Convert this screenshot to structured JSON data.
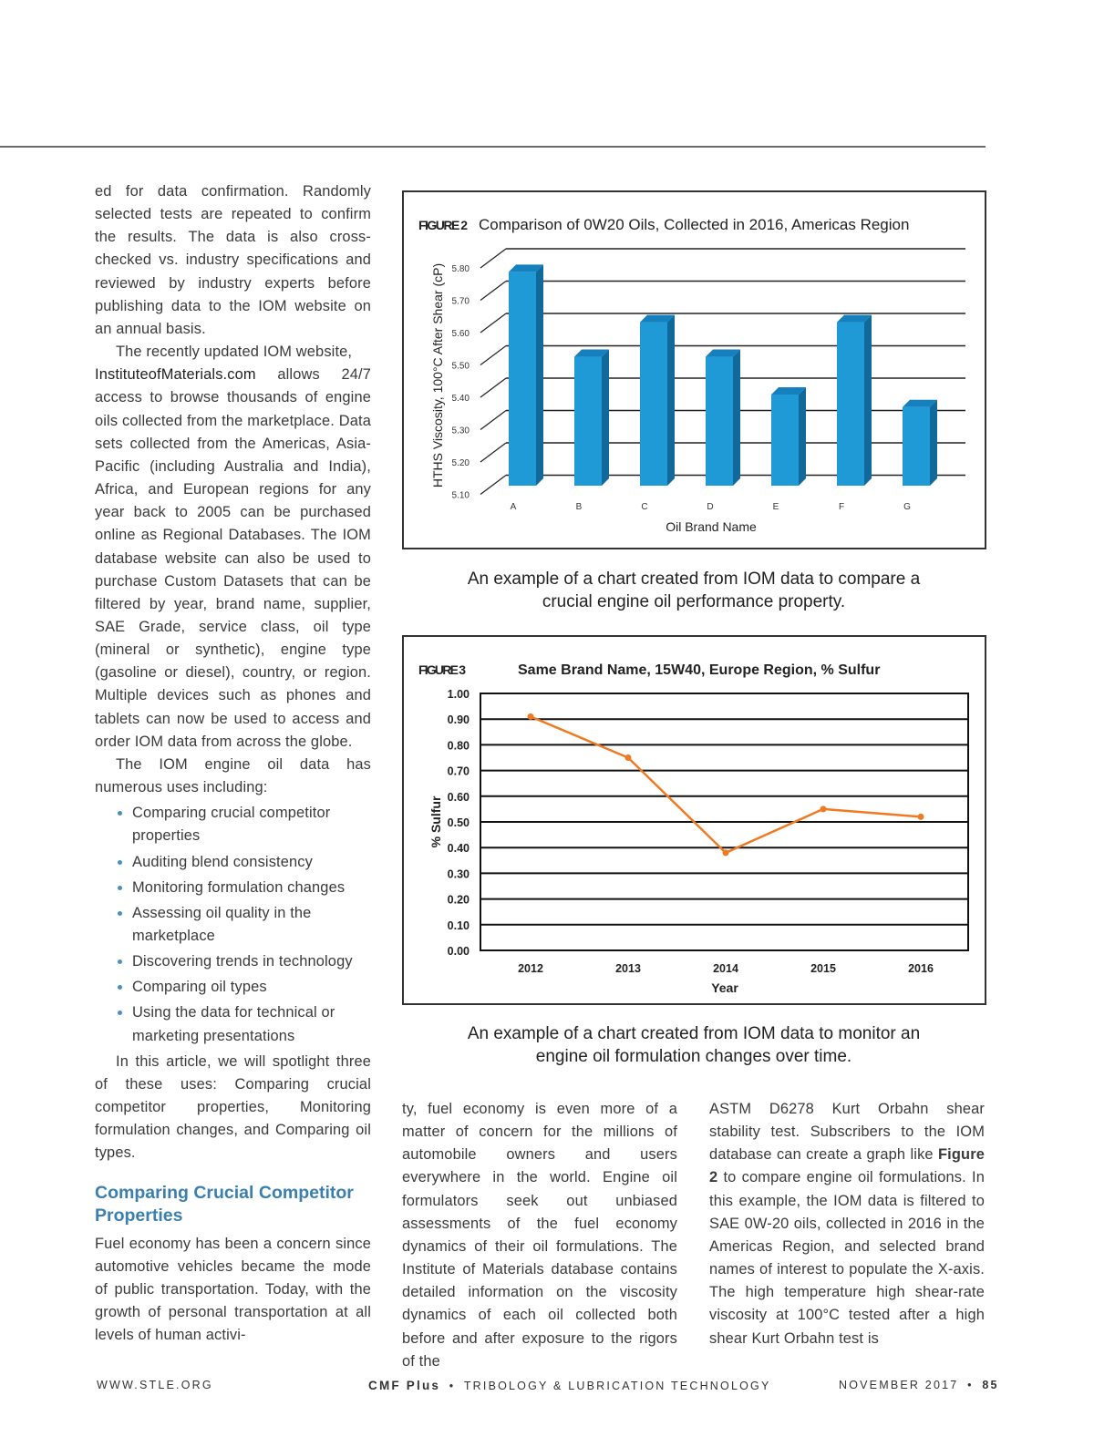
{
  "left_column": {
    "p1": "ed for data confirmation. Randomly selected tests are repeated to confirm the results. The data is also cross-checked vs. industry specifications and reviewed by industry experts before publishing data to the IOM website on an annual basis.",
    "p2_start": "The recently updated IOM website,",
    "p2_link": "InstituteofMaterials.com",
    "p2_rest": " allows 24/7 access to browse thousands of engine oils collected from the marketplace. Data sets collected from the Americas, Asia-Pacific (including Australia and India), Africa, and European regions for any year back to 2005 can be purchased online as Regional Databases. The IOM database website can also be used to purchase Custom Datasets that can be filtered by year, brand name, supplier, SAE Grade, service class, oil type (mineral or synthetic), engine type (gasoline or diesel), country, or region. Multiple devices such as phones and tablets can now be used to access and order IOM data from across the globe.",
    "p3": "The IOM engine oil data has numerous uses including:",
    "bullets": [
      "Comparing crucial competitor properties",
      "Auditing blend consistency",
      "Monitoring formulation changes",
      "Assessing oil quality in the marketplace",
      "Discovering trends in technology",
      "Comparing oil types",
      "Using the data for technical or marketing presentations"
    ],
    "p4": "In this article, we will spotlight three of these uses: Comparing crucial competitor properties, Monitoring formulation changes, and Comparing oil types.",
    "heading": "Comparing Crucial Competitor Properties",
    "p5": "Fuel economy has been a concern since automotive vehicles became the mode of public transportation. Today, with the growth of personal transportation at all levels of human activi-"
  },
  "middle_column": {
    "p1": "ty, fuel economy is even more of a matter of concern for the millions of automobile owners and users everywhere in the world. Engine oil formulators seek out unbiased assessments of the fuel economy dynamics of their oil formulations. The Institute of Materials database contains detailed information on the viscosity dynamics of each oil collected both before and after exposure to the rigors of the"
  },
  "right_column": {
    "p1_start": "ASTM D6278 Kurt Orbahn shear stability test. Subscribers to the IOM database can create a graph like ",
    "p1_ref": "Figure 2",
    "p1_rest": " to compare engine oil formulations. In this example, the IOM data is filtered to SAE 0W-20 oils, collected in 2016 in the Americas Region, and selected brand names of interest to populate the X-axis. The high temperature high shear-rate viscosity at 100°C tested after a high shear Kurt Orbahn test is"
  },
  "figure2": {
    "label": "FIGURE 2",
    "caption": "An example of a chart created from IOM data to compare a crucial engine oil performance property."
  },
  "figure3": {
    "label": "FIGURE 3",
    "caption": "An example of a chart created from IOM data to monitor an engine oil formulation changes over time."
  },
  "chart_data": [
    {
      "type": "bar",
      "title": "Comparison of 0W20 Oils, Collected in 2016, Americas Region",
      "xlabel": "Oil Brand Name",
      "ylabel": "HTHS Viscosity, 100°C After Shear (cP)",
      "categories": [
        "A",
        "B",
        "C",
        "D",
        "E",
        "F",
        "G"
      ],
      "values": [
        5.78,
        5.51,
        5.62,
        5.51,
        5.39,
        5.62,
        5.35
      ],
      "ylim": [
        5.1,
        5.8
      ],
      "yticks": [
        "5.10",
        "5.20",
        "5.30",
        "5.40",
        "5.50",
        "5.60",
        "5.70",
        "5.80"
      ],
      "grid": true,
      "color": "#1f9ad6"
    },
    {
      "type": "line",
      "title": "Same Brand Name, 15W40, Europe Region, % Sulfur",
      "xlabel": "Year",
      "ylabel": "% Sulfur",
      "categories": [
        "2012",
        "2013",
        "2014",
        "2015",
        "2016"
      ],
      "values": [
        0.91,
        0.75,
        0.38,
        0.55,
        0.52
      ],
      "ylim": [
        0,
        1.0
      ],
      "yticks": [
        "0.00",
        "0.10",
        "0.20",
        "0.30",
        "0.40",
        "0.50",
        "0.60",
        "0.70",
        "0.80",
        "0.90",
        "1.00"
      ],
      "grid": true,
      "color": "#f07a22"
    }
  ],
  "footer": {
    "website": "WWW.STLE.ORG",
    "brand": "CMF Plus",
    "bullet": "•",
    "publication": "TRIBOLOGY & LUBRICATION TECHNOLOGY",
    "date": "NOVEMBER 2017",
    "page": "85"
  }
}
